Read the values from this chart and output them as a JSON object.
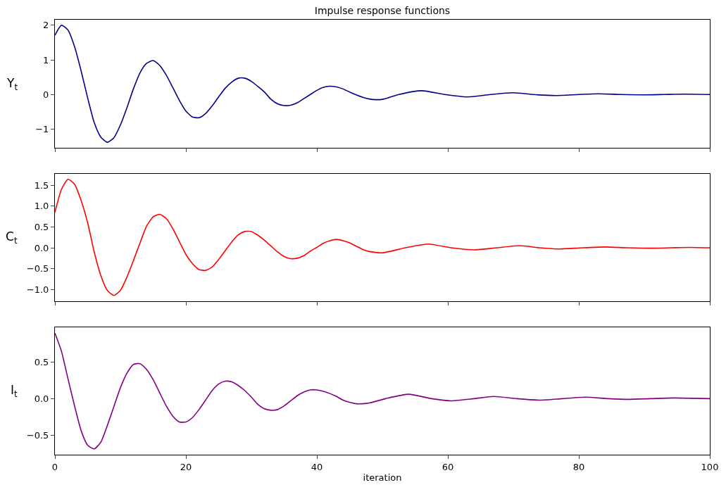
{
  "chart_data": [
    {
      "type": "line",
      "title": "Impulse response functions",
      "ylabel": "Y$_{t}$",
      "xlim": [
        0,
        100
      ],
      "xticks": [
        0,
        20,
        40,
        60,
        80,
        100
      ],
      "ylim": [
        -1.54,
        2.16
      ],
      "yticks": [
        -1,
        0,
        1,
        2
      ],
      "tick_labels": "y",
      "series": [
        {
          "color": "#00008b",
          "x": [
            0,
            1,
            2,
            3,
            4,
            5,
            6,
            7,
            8,
            9,
            10,
            11,
            12,
            13,
            14,
            15,
            16,
            17,
            18,
            19,
            20,
            21,
            22,
            23,
            24,
            25,
            26,
            27,
            28,
            29,
            30,
            31,
            32,
            33,
            34,
            35,
            36,
            37,
            38,
            39,
            40,
            41,
            42,
            43,
            44,
            45,
            46,
            47,
            48,
            49,
            50,
            52.5,
            56,
            59.5,
            63,
            66.5,
            70,
            73,
            76.5,
            80,
            83,
            86.5,
            90,
            93,
            96,
            100
          ],
          "values": [
            1.71,
            2.0,
            1.86,
            1.38,
            0.68,
            -0.1,
            -0.81,
            -1.23,
            -1.38,
            -1.25,
            -0.88,
            -0.38,
            0.17,
            0.63,
            0.9,
            0.98,
            0.84,
            0.56,
            0.2,
            -0.17,
            -0.48,
            -0.65,
            -0.67,
            -0.55,
            -0.33,
            -0.07,
            0.18,
            0.36,
            0.47,
            0.47,
            0.38,
            0.23,
            0.07,
            -0.14,
            -0.27,
            -0.32,
            -0.31,
            -0.24,
            -0.12,
            0,
            0.12,
            0.21,
            0.24,
            0.22,
            0.16,
            0.07,
            -0.01,
            -0.08,
            -0.13,
            -0.15,
            -0.14,
            0,
            0.11,
            0,
            -0.07,
            0,
            0.05,
            0,
            -0.03,
            0,
            0.02,
            0,
            -0.01,
            0,
            0.01,
            0
          ]
        }
      ]
    },
    {
      "type": "line",
      "ylabel": "C$_{t}$",
      "xlim": [
        0,
        100
      ],
      "xticks": [
        0,
        20,
        40,
        60,
        80,
        100
      ],
      "ylim": [
        -1.28,
        1.77
      ],
      "yticks": [
        {
          "value": -1,
          "label": "−1.0"
        },
        -0.5,
        {
          "value": 0,
          "label": "0.0"
        },
        0.5,
        {
          "value": 1,
          "label": "1.0"
        },
        1.5
      ],
      "tick_labels": "y",
      "series": [
        {
          "color": "#ff0000",
          "x": [
            0,
            1,
            2,
            3,
            4,
            5,
            6,
            7,
            8,
            9,
            10,
            11,
            12,
            13,
            14,
            15,
            16,
            17,
            18,
            19,
            20,
            21,
            22,
            23,
            24,
            25,
            26,
            27,
            28,
            29,
            30,
            31,
            32,
            33,
            34,
            35,
            36,
            37,
            38,
            39,
            40,
            41,
            42,
            43,
            44,
            45,
            46,
            47,
            48,
            50,
            53.5,
            57,
            60.5,
            64,
            67.5,
            71,
            74,
            77,
            80.5,
            84,
            87.5,
            91,
            94,
            97,
            100
          ],
          "values": [
            0.85,
            1.4,
            1.64,
            1.52,
            1.13,
            0.6,
            -0.1,
            -0.66,
            -1.02,
            -1.14,
            -1.02,
            -0.7,
            -0.3,
            0.12,
            0.52,
            0.74,
            0.8,
            0.7,
            0.46,
            0.15,
            -0.16,
            -0.38,
            -0.52,
            -0.54,
            -0.46,
            -0.28,
            -0.07,
            0.14,
            0.31,
            0.39,
            0.39,
            0.3,
            0.18,
            0.04,
            -0.1,
            -0.21,
            -0.26,
            -0.25,
            -0.19,
            -0.08,
            0.01,
            0.11,
            0.17,
            0.2,
            0.17,
            0.12,
            0.04,
            -0.04,
            -0.09,
            -0.12,
            0,
            0.09,
            0,
            -0.05,
            0,
            0.05,
            0,
            -0.03,
            0,
            0.02,
            0,
            -0.01,
            0,
            0.01,
            0
          ]
        }
      ]
    },
    {
      "type": "line",
      "ylabel": "I$_{t}$",
      "xlabel": "iteration",
      "xlim": [
        0,
        100
      ],
      "xticks": [
        0,
        20,
        40,
        60,
        80,
        100
      ],
      "ylim": [
        -0.77,
        0.98
      ],
      "yticks": [
        -0.5,
        {
          "value": 0,
          "label": "0.0"
        },
        0.5
      ],
      "series": [
        {
          "color": "#800080",
          "x": [
            0,
            1,
            2,
            3,
            4,
            5,
            6,
            7,
            8,
            9,
            10,
            11,
            12,
            13,
            14,
            15,
            16,
            17,
            18,
            19,
            20,
            21,
            22,
            23,
            24,
            25,
            26,
            27,
            28,
            29,
            30,
            31,
            32,
            33,
            34,
            35,
            36,
            37,
            38,
            39,
            40,
            41,
            42,
            43,
            44,
            45,
            46,
            47,
            48,
            50.5,
            54,
            57.5,
            60.5,
            64,
            67,
            70.5,
            74,
            77.5,
            81,
            84.5,
            87.5,
            91,
            94.5,
            100
          ],
          "values": [
            0.9,
            0.65,
            0.27,
            -0.1,
            -0.44,
            -0.64,
            -0.69,
            -0.6,
            -0.37,
            -0.11,
            0.15,
            0.35,
            0.47,
            0.48,
            0.4,
            0.26,
            0.08,
            -0.1,
            -0.24,
            -0.32,
            -0.32,
            -0.26,
            -0.15,
            -0.02,
            0.11,
            0.2,
            0.24,
            0.23,
            0.18,
            0.11,
            0.02,
            -0.08,
            -0.14,
            -0.16,
            -0.15,
            -0.1,
            -0.03,
            0.04,
            0.09,
            0.12,
            0.12,
            0.1,
            0.07,
            0.03,
            -0.02,
            -0.05,
            -0.07,
            -0.07,
            -0.06,
            0,
            0.06,
            0,
            -0.03,
            0,
            0.03,
            0,
            -0.02,
            0,
            0.02,
            0,
            -0.01,
            0,
            0.01,
            0
          ]
        }
      ]
    }
  ]
}
